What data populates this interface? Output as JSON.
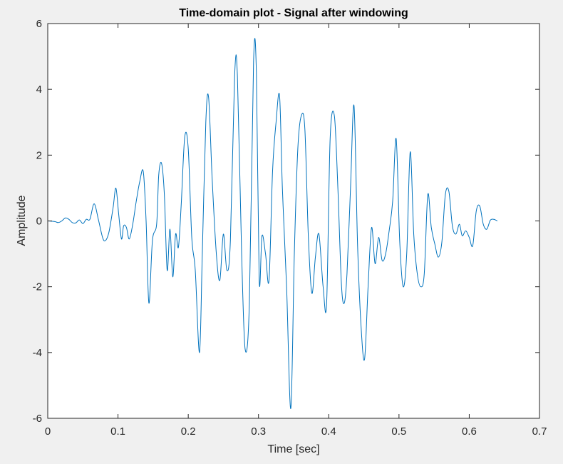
{
  "chart_data": {
    "type": "line",
    "title": "Time-domain plot - Signal after windowing",
    "xlabel": "Time [sec]",
    "ylabel": "Amplitude",
    "xlim": [
      0,
      0.7
    ],
    "ylim": [
      -6,
      6
    ],
    "xticks": [
      0,
      0.1,
      0.2,
      0.3,
      0.4,
      0.5,
      0.6,
      0.7
    ],
    "xtick_labels": [
      "0",
      "0.1",
      "0.2",
      "0.3",
      "0.4",
      "0.5",
      "0.6",
      "0.7"
    ],
    "yticks": [
      -6,
      -4,
      -2,
      0,
      2,
      4,
      6
    ],
    "ytick_labels": [
      "-6",
      "-4",
      "-2",
      "0",
      "2",
      "4",
      "6"
    ],
    "grid": false,
    "line_color": "#0072bd",
    "series": [
      {
        "x": [
          0,
          0.01,
          0.015,
          0.02,
          0.025,
          0.03,
          0.035,
          0.04,
          0.045,
          0.05,
          0.055,
          0.06,
          0.066,
          0.072,
          0.078,
          0.082,
          0.087,
          0.093,
          0.097,
          0.101,
          0.105,
          0.108,
          0.112,
          0.116,
          0.121,
          0.126,
          0.131,
          0.136,
          0.14,
          0.144,
          0.149,
          0.155,
          0.158,
          0.162,
          0.166,
          0.17,
          0.174,
          0.178,
          0.182,
          0.186,
          0.19,
          0.195,
          0.2,
          0.205,
          0.21,
          0.216,
          0.22,
          0.225,
          0.229,
          0.234,
          0.24,
          0.245,
          0.25,
          0.255,
          0.26,
          0.266,
          0.27,
          0.276,
          0.281,
          0.287,
          0.293,
          0.297,
          0.301,
          0.305,
          0.31,
          0.315,
          0.32,
          0.325,
          0.33,
          0.334,
          0.34,
          0.346,
          0.351,
          0.356,
          0.361,
          0.366,
          0.371,
          0.376,
          0.381,
          0.386,
          0.392,
          0.397,
          0.402,
          0.408,
          0.413,
          0.418,
          0.422,
          0.426,
          0.431,
          0.436,
          0.441,
          0.446,
          0.451,
          0.456,
          0.461,
          0.466,
          0.471,
          0.476,
          0.481,
          0.486,
          0.491,
          0.496,
          0.501,
          0.506,
          0.511,
          0.516,
          0.521,
          0.526,
          0.531,
          0.536,
          0.541,
          0.546,
          0.551,
          0.556,
          0.561,
          0.566,
          0.571,
          0.576,
          0.581,
          0.586,
          0.59,
          0.595,
          0.6,
          0.605,
          0.61,
          0.615,
          0.62,
          0.625,
          0.63,
          0.635,
          0.64
        ],
        "y": [
          0,
          -0.02,
          -0.05,
          0,
          0.09,
          0.05,
          -0.05,
          -0.06,
          0.03,
          -0.08,
          0.05,
          0.05,
          0.52,
          0.05,
          -0.5,
          -0.6,
          -0.35,
          0.4,
          1.0,
          0.2,
          -0.55,
          -0.15,
          -0.2,
          -0.55,
          -0.1,
          0.6,
          1.2,
          1.5,
          0.0,
          -2.5,
          -0.6,
          -0.1,
          1.4,
          1.75,
          0.8,
          -1.5,
          -0.25,
          -1.7,
          -0.4,
          -0.8,
          0.5,
          2.55,
          2.2,
          -0.5,
          -1.5,
          -4.0,
          -1.0,
          3.0,
          3.75,
          1.3,
          -1.0,
          -1.8,
          -0.4,
          -1.5,
          -0.6,
          4.4,
          4.4,
          -1.0,
          -3.9,
          -2.5,
          4.85,
          4.5,
          -1.8,
          -0.45,
          -1.0,
          -1.8,
          1.5,
          3.0,
          3.8,
          1.0,
          -2.0,
          -5.7,
          -1.0,
          2.2,
          3.2,
          2.8,
          -0.5,
          -2.2,
          -1.1,
          -0.4,
          -2.0,
          -2.5,
          2.5,
          3.2,
          1.0,
          -1.9,
          -2.5,
          -1.6,
          1.0,
          3.5,
          -0.7,
          -3.2,
          -4.2,
          -2.0,
          -0.2,
          -1.3,
          -0.5,
          -1.2,
          -1.0,
          -0.3,
          0.6,
          2.5,
          -0.6,
          -2.0,
          -1.0,
          2.1,
          -0.4,
          -1.6,
          -2.0,
          -1.6,
          0.8,
          -0.2,
          -0.7,
          -1.1,
          -0.65,
          0.8,
          0.9,
          -0.15,
          -0.4,
          -0.1,
          -0.45,
          -0.3,
          -0.5,
          -0.75,
          0.3,
          0.45,
          -0.1,
          -0.25,
          0.02,
          0.05,
          0.0
        ]
      }
    ]
  }
}
